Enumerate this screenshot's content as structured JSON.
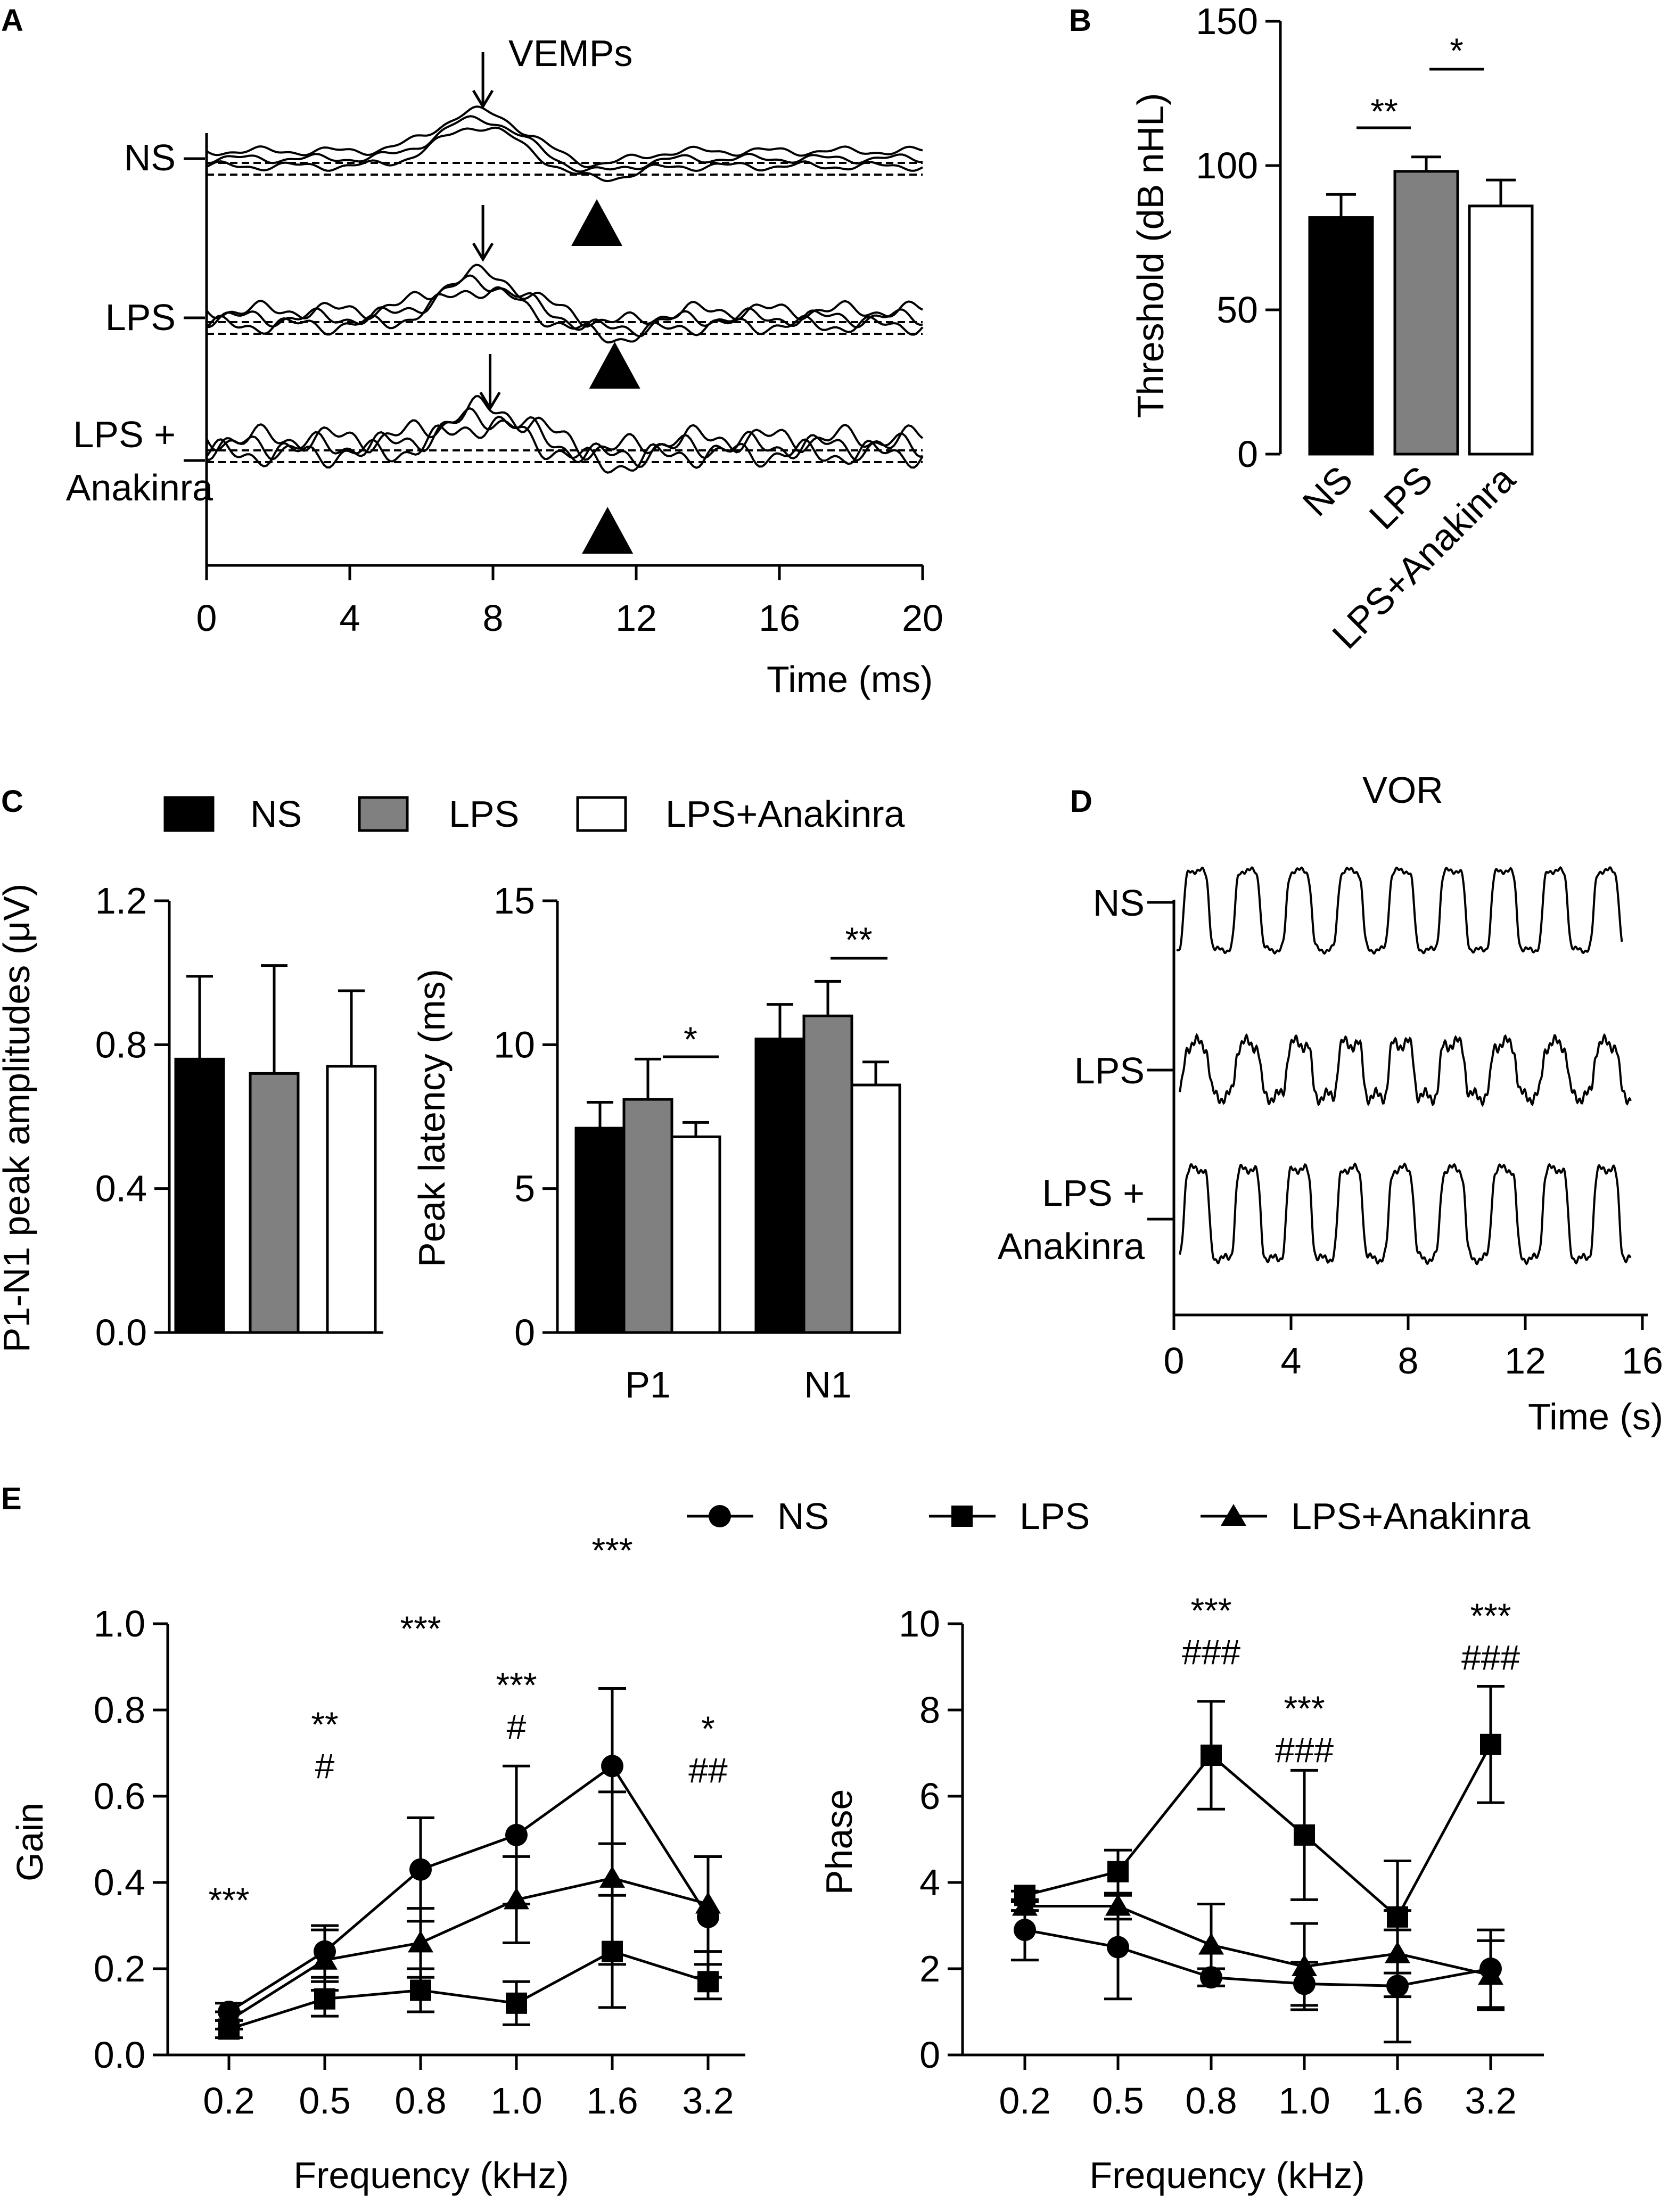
{
  "panel_letters": [
    "A",
    "B",
    "C",
    "D",
    "E"
  ],
  "colors": {
    "ns": "#000000",
    "lps": "#808080",
    "anakinra": "#ffffff",
    "ink": "#000000"
  },
  "chart_data": [
    {
      "panel": "A",
      "type": "line",
      "title": "VEMPs",
      "xlabel": "Time (ms)",
      "xlim": [
        0,
        20
      ],
      "xticks": [
        "0",
        "4",
        "8",
        "12",
        "16",
        "20"
      ],
      "traces": [
        "NS",
        "LPS",
        "LPS +",
        "Anakinra"
      ],
      "peak_marker_ms": [
        7.6,
        7.6,
        7.8
      ],
      "trough_marker_ms": [
        10.9,
        11.4,
        11.2
      ]
    },
    {
      "panel": "B",
      "type": "bar",
      "categories": [
        "NS",
        "LPS",
        "LPS+Anakinra"
      ],
      "values": [
        82,
        98,
        86
      ],
      "errors": [
        8,
        5,
        9
      ],
      "ylabel": "Threshold (dB nHL)",
      "ylim": [
        0,
        150
      ],
      "yticks": [
        "0",
        "50",
        "100",
        "150"
      ],
      "significance": [
        "**",
        "*"
      ]
    },
    {
      "panel": "C",
      "type": "bar",
      "legend": [
        "NS",
        "LPS",
        "LPS+Anakinra"
      ],
      "ylabel": "P1-N1 peak amplitudes (μV)",
      "ylim": [
        0,
        1.2
      ],
      "yticks": [
        "0.0",
        "0.4",
        "0.8",
        "1.2"
      ],
      "series": [
        {
          "name": "NS",
          "values": [
            0.76
          ],
          "errors": [
            0.23
          ]
        },
        {
          "name": "LPS",
          "values": [
            0.72
          ],
          "errors": [
            0.3
          ]
        },
        {
          "name": "LPS+Anakinra",
          "values": [
            0.74
          ],
          "errors": [
            0.21
          ]
        }
      ]
    },
    {
      "panel": "C",
      "type": "bar",
      "categories": [
        "P1",
        "N1"
      ],
      "ylabel": "Peak latency (ms)",
      "ylim": [
        0,
        15
      ],
      "yticks": [
        "0",
        "5",
        "10",
        "15"
      ],
      "series": [
        {
          "name": "NS",
          "values": [
            7.1,
            10.2
          ],
          "errors": [
            0.9,
            1.2
          ]
        },
        {
          "name": "LPS",
          "values": [
            8.1,
            11.0
          ],
          "errors": [
            1.4,
            1.2
          ]
        },
        {
          "name": "LPS+Anakinra",
          "values": [
            6.8,
            8.6
          ],
          "errors": [
            0.5,
            0.8
          ]
        }
      ],
      "significance": [
        "*",
        "**"
      ]
    },
    {
      "panel": "D",
      "type": "line",
      "title": "VOR",
      "xlabel": "Time (s)",
      "xlim": [
        0,
        16
      ],
      "xticks": [
        "0",
        "4",
        "8",
        "12",
        "16"
      ],
      "traces": [
        "NS",
        "LPS",
        "LPS +",
        "Anakinra"
      ]
    },
    {
      "panel": "E",
      "type": "line",
      "legend": [
        "NS",
        "LPS",
        "LPS+Anakinra"
      ],
      "categories": [
        "0.2",
        "0.5",
        "0.8",
        "1.0",
        "1.6",
        "3.2"
      ],
      "xlabel": "Frequency (kHz)",
      "ylabel": "Gain",
      "ylim": [
        0,
        1.0
      ],
      "yticks": [
        "0.0",
        "0.2",
        "0.4",
        "0.6",
        "0.8",
        "1.0"
      ],
      "series": [
        {
          "name": "NS",
          "marker": "circle",
          "values": [
            0.1,
            0.24,
            0.43,
            0.51,
            0.67,
            0.32
          ],
          "errors": [
            0.02,
            0.06,
            0.12,
            0.16,
            0.18,
            0.14
          ]
        },
        {
          "name": "LPS",
          "marker": "square",
          "values": [
            0.06,
            0.13,
            0.15,
            0.12,
            0.24,
            0.17
          ],
          "errors": [
            0.02,
            0.04,
            0.05,
            0.05,
            0.13,
            0.04
          ]
        },
        {
          "name": "LPS+Anakinra",
          "marker": "triangle",
          "values": [
            0.08,
            0.22,
            0.26,
            0.36,
            0.41,
            0.35
          ],
          "errors": [
            0.02,
            0.07,
            0.08,
            0.1,
            0.2,
            0.11
          ]
        }
      ],
      "annotations": [
        [
          "***"
        ],
        [
          "**",
          "#"
        ],
        [
          "***"
        ],
        [
          "***",
          "#"
        ],
        [
          "***"
        ],
        [
          "*",
          "##"
        ]
      ]
    },
    {
      "panel": "E",
      "type": "line",
      "categories": [
        "0.2",
        "0.5",
        "0.8",
        "1.0",
        "1.6",
        "3.2"
      ],
      "xlabel": "Frequency (kHz)",
      "ylabel": "Phase",
      "ylim": [
        0,
        10
      ],
      "yticks": [
        "0",
        "2",
        "4",
        "6",
        "8",
        "10"
      ],
      "series": [
        {
          "name": "NS",
          "marker": "circle",
          "values": [
            2.9,
            2.5,
            1.8,
            1.65,
            1.6,
            2.0
          ],
          "errors": [
            0.7,
            1.2,
            0.2,
            0.5,
            1.3,
            0.9
          ]
        },
        {
          "name": "LPS",
          "marker": "square",
          "values": [
            3.7,
            4.25,
            6.95,
            5.1,
            3.2,
            7.2
          ],
          "errors": [
            0.1,
            0.5,
            1.25,
            1.5,
            1.3,
            1.35
          ]
        },
        {
          "name": "LPS+Anakinra",
          "marker": "triangle",
          "values": [
            3.45,
            3.45,
            2.55,
            2.05,
            2.35,
            1.85
          ],
          "errors": [
            0.1,
            0.3,
            0.95,
            1.0,
            1.0,
            0.8
          ]
        }
      ],
      "annotations": [
        [],
        [],
        [
          "***",
          "###"
        ],
        [
          "***",
          "###"
        ],
        [],
        [
          "***",
          "###"
        ]
      ]
    }
  ]
}
